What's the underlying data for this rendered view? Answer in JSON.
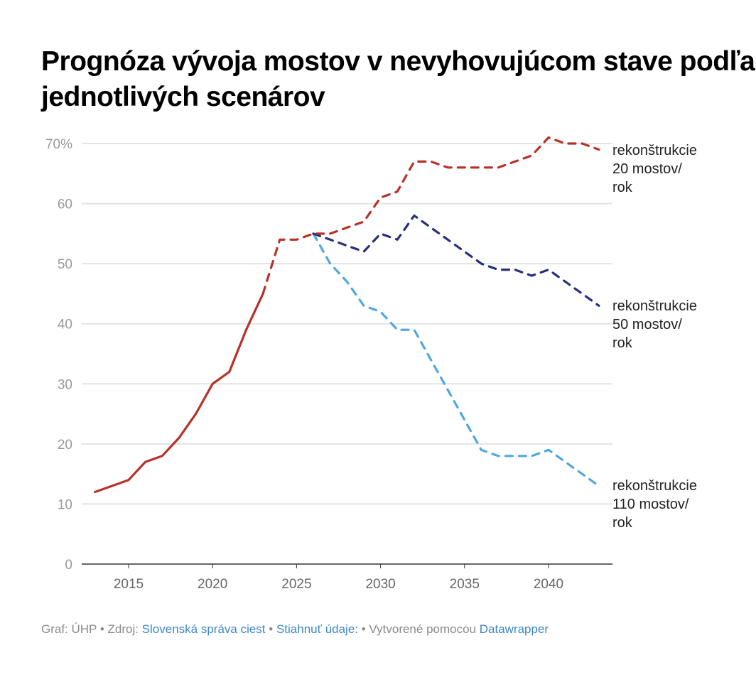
{
  "chart_data": {
    "type": "line",
    "title": "Prognóza vývoja mostov v nevyhovujúcom stave podľa jednotlivých scenárov",
    "xlim": [
      2013,
      2043
    ],
    "ylim": [
      0,
      70
    ],
    "x_ticks": [
      2015,
      2020,
      2025,
      2030,
      2035,
      2040
    ],
    "y_ticks": [
      0,
      10,
      20,
      30,
      40,
      50,
      60,
      70
    ],
    "y_tick_labels": [
      "0",
      "10",
      "20",
      "30",
      "40",
      "50",
      "60",
      "70%"
    ],
    "grid": true,
    "historical": {
      "color": "#b83128",
      "x": [
        2013,
        2014,
        2015,
        2016,
        2017,
        2018,
        2019,
        2020,
        2021,
        2022,
        2023
      ],
      "values": [
        12,
        13,
        14,
        17,
        18,
        21,
        25,
        30,
        32,
        39,
        45
      ]
    },
    "series": [
      {
        "name": "rekonštrukcie 20 mostov/ rok",
        "color": "#b83128",
        "x": [
          2023,
          2024,
          2025,
          2026,
          2027,
          2028,
          2029,
          2030,
          2031,
          2032,
          2033,
          2034,
          2035,
          2036,
          2037,
          2038,
          2039,
          2040,
          2041,
          2042,
          2043
        ],
        "values": [
          45,
          54,
          54,
          55,
          55,
          56,
          57,
          61,
          62,
          67,
          67,
          66,
          66,
          66,
          66,
          67,
          68,
          71,
          70,
          70,
          69
        ]
      },
      {
        "name": "rekonštrukcie 50 mostov/ rok",
        "color": "#27307a",
        "x": [
          2026,
          2027,
          2028,
          2029,
          2030,
          2031,
          2032,
          2033,
          2034,
          2035,
          2036,
          2037,
          2038,
          2039,
          2040,
          2041,
          2042,
          2043
        ],
        "values": [
          55,
          54,
          53,
          52,
          55,
          54,
          58,
          56,
          54,
          52,
          50,
          49,
          49,
          48,
          49,
          47,
          45,
          43
        ]
      },
      {
        "name": "rekonštrukcie 110 mostov/ rok",
        "color": "#4fa8de",
        "x": [
          2026,
          2027,
          2028,
          2029,
          2030,
          2031,
          2032,
          2033,
          2034,
          2035,
          2036,
          2037,
          2038,
          2039,
          2040,
          2041,
          2042,
          2043
        ],
        "values": [
          55,
          50,
          47,
          43,
          42,
          39,
          39,
          34,
          29,
          24,
          19,
          18,
          18,
          18,
          19,
          17,
          15,
          13
        ]
      }
    ],
    "labels": [
      "rekonštrukcie\n20 mostov/\nrok",
      "rekonštrukcie\n50 mostov/\nrok",
      "rekonštrukcie\n110 mostov/\nrok"
    ]
  },
  "footer": {
    "prefix": "Graf: ÚHP • Zdroj: ",
    "source_link": "Slovenská správa ciest",
    "sep": " • ",
    "download_link": "Stiahnuť údaje:",
    "made_with": " • Vytvorené pomocou ",
    "dw_link": "Datawrapper"
  }
}
